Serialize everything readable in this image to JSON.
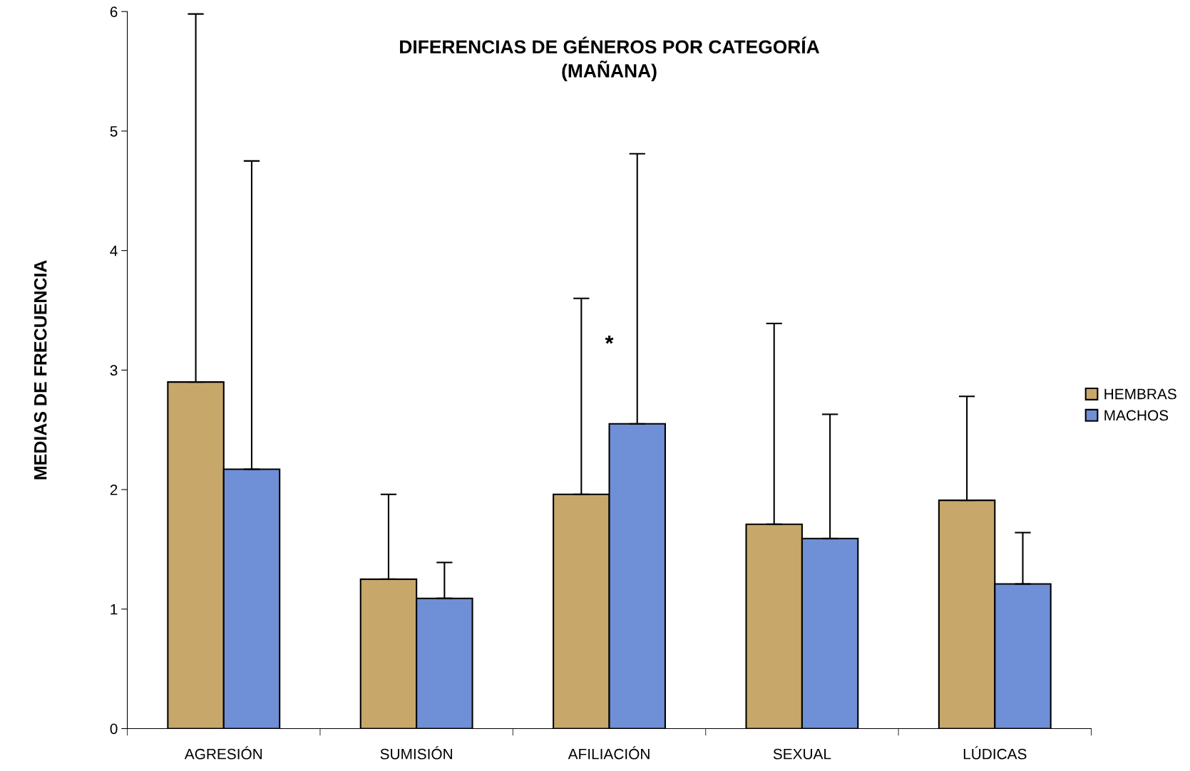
{
  "chart_data": {
    "type": "bar",
    "title": "DIFERENCIAS DE GÉNEROS POR CATEGORÍA\n(MAÑANA)",
    "ylabel": "MEDIAS DE FRECUENCIA",
    "categories": [
      "AGRESIÓN",
      "SUMISIÓN",
      "AFILIACIÓN",
      "SEXUAL",
      "LÚDICAS"
    ],
    "series": [
      {
        "name": "HEMBRAS",
        "color": "#c8a86a",
        "values": [
          2.9,
          1.25,
          1.96,
          1.71,
          1.91
        ],
        "errors": [
          [
            2.9,
            5.98
          ],
          [
            1.25,
            1.96
          ],
          [
            1.96,
            3.6
          ],
          [
            1.71,
            3.39
          ],
          [
            1.91,
            2.78
          ]
        ]
      },
      {
        "name": "MACHOS",
        "color": "#6f8fd6",
        "values": [
          2.17,
          1.09,
          2.55,
          1.59,
          1.21
        ],
        "errors": [
          [
            2.17,
            4.75
          ],
          [
            1.09,
            1.39
          ],
          [
            2.55,
            4.81
          ],
          [
            1.59,
            2.63
          ],
          [
            1.21,
            1.64
          ]
        ]
      }
    ],
    "ylim": [
      0,
      6
    ],
    "yticks": [
      0,
      1,
      2,
      3,
      4,
      5,
      6
    ],
    "grid": false,
    "legend": "right",
    "annotations": [
      "*"
    ]
  }
}
